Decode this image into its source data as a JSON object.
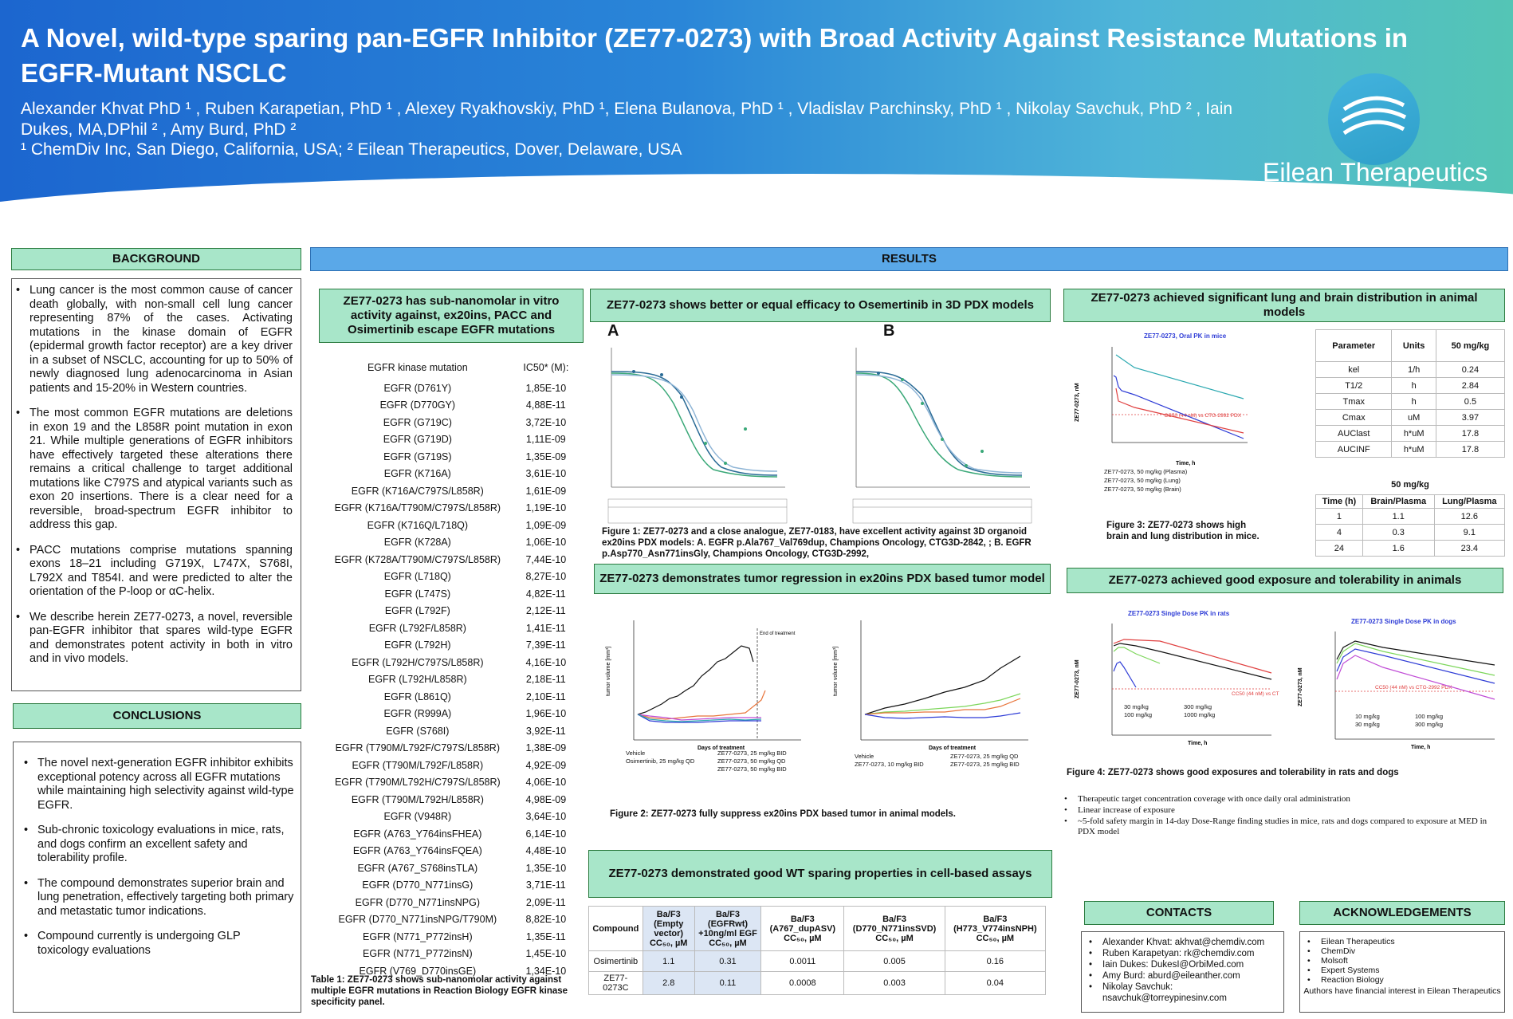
{
  "header": {
    "title": "A Novel, wild-type sparing pan-EGFR Inhibitor (ZE77-0273) with Broad Activity Against Resistance Mutations in EGFR-Mutant NSCLC",
    "authors": "Alexander Khvat PhD ¹ , Ruben Karapetian, PhD ¹ , Alexey Ryakhovskiy, PhD ¹, Elena Bulanova, PhD ¹ , Vladislav Parchinsky, PhD ¹ , Nikolay Savchuk, PhD ² , Iain Dukes, MA,DPhil ² , Amy Burd, PhD ²",
    "affiliations": "¹ ChemDiv Inc, San Diego, California, USA; ² Eilean Therapeutics, Dover, Delaware, USA",
    "logo_text": "Eilean Therapeutics"
  },
  "background": {
    "heading": "BACKGROUND",
    "bullets": [
      "Lung cancer is the most common cause of cancer death globally, with non-small cell lung cancer representing 87% of the cases. Activating mutations in the kinase domain of EGFR (epidermal growth factor receptor) are a key driver in a subset of NSCLC, accounting for up to 50% of newly diagnosed lung adenocarcinoma in Asian patients and 15-20% in Western countries.",
      "The most common EGFR mutations are deletions in exon 19 and the L858R point mutation in exon 21. While multiple generations of EGFR inhibitors have effectively targeted these alterations there remains a critical challenge to target additional mutations like C797S and atypical variants such as exon 20 insertions. There is a clear need for a reversible, broad-spectrum EGFR inhibitor to address this gap.",
      "PACC mutations comprise mutations spanning exons 18–21 including G719X, L747X, S768I, L792X and T854I. and were predicted to alter the orientation of the P-loop or αC-helix.",
      "We describe herein ZE77-0273, a novel, reversible pan-EGFR inhibitor that spares wild-type EGFR and demonstrates potent activity in both in vitro and in vivo models."
    ]
  },
  "conclusions": {
    "heading": "CONCLUSIONS",
    "bullets": [
      "The novel next-generation EGFR inhibitor exhibits exceptional potency across all EGFR mutations while maintaining high selectivity against wild-type EGFR.",
      "Sub-chronic toxicology evaluations in mice, rats, and dogs confirm an excellent safety and tolerability profile.",
      "The compound demonstrates superior brain and lung penetration, effectively targeting both primary and metastatic tumor indications.",
      "Compound currently is undergoing GLP toxicology evaluations"
    ]
  },
  "results": {
    "heading": "RESULTS",
    "ic50": {
      "heading": "ZE77-0273 has sub-nanomolar in vitro activity against, ex20ins, PACC and Osimertinib escape EGFR mutations",
      "col1": "EGFR kinase mutation",
      "col2": "IC50* (M):",
      "rows": [
        [
          "EGFR (D761Y)",
          "1,85E-10"
        ],
        [
          "EGFR (D770GY)",
          "4,88E-11"
        ],
        [
          "EGFR (G719C)",
          "3,72E-10"
        ],
        [
          "EGFR (G719D)",
          "1,11E-09"
        ],
        [
          "EGFR (G719S)",
          "1,35E-09"
        ],
        [
          "EGFR (K716A)",
          "3,61E-10"
        ],
        [
          "EGFR (K716A/C797S/L858R)",
          "1,61E-09"
        ],
        [
          "EGFR (K716A/T790M/C797S/L858R)",
          "1,19E-10"
        ],
        [
          "EGFR (K716Q/L718Q)",
          "1,09E-09"
        ],
        [
          "EGFR (K728A)",
          "1,06E-10"
        ],
        [
          "EGFR (K728A/T790M/C797S/L858R)",
          "7,44E-10"
        ],
        [
          "EGFR (L718Q)",
          "8,27E-10"
        ],
        [
          "EGFR (L747S)",
          "4,82E-11"
        ],
        [
          "EGFR (L792F)",
          "2,12E-11"
        ],
        [
          "EGFR (L792F/L858R)",
          "1,41E-11"
        ],
        [
          "EGFR (L792H)",
          "7,39E-11"
        ],
        [
          "EGFR (L792H/C797S/L858R)",
          "4,16E-10"
        ],
        [
          "EGFR (L792H/L858R)",
          "2,18E-11"
        ],
        [
          "EGFR (L861Q)",
          "2,10E-11"
        ],
        [
          "EGFR (R999A)",
          "1,96E-10"
        ],
        [
          "EGFR (S768I)",
          "3,92E-11"
        ],
        [
          "EGFR (T790M/L792F/C797S/L858R)",
          "1,38E-09"
        ],
        [
          "EGFR (T790M/L792F/L858R)",
          "4,92E-09"
        ],
        [
          "EGFR (T790M/L792H/C797S/L858R)",
          "4,06E-10"
        ],
        [
          "EGFR (T790M/L792H/L858R)",
          "4,98E-09"
        ],
        [
          "EGFR (V948R)",
          "3,64E-10"
        ],
        [
          "EGFR (A763_Y764insFHEA)",
          "6,14E-10"
        ],
        [
          "EGFR (A763_Y764insFQEA)",
          "4,48E-10"
        ],
        [
          "EGFR (A767_S768insTLA)",
          "1,35E-10"
        ],
        [
          "EGFR (D770_N771insG)",
          "3,71E-11"
        ],
        [
          "EGFR (D770_N771insNPG)",
          "2,09E-11"
        ],
        [
          "EGFR (D770_N771insNPG/T790M)",
          "8,82E-10"
        ],
        [
          "EGFR (N771_P772insH)",
          "1,35E-11"
        ],
        [
          "EGFR (N771_P772insN)",
          "1,45E-10"
        ],
        [
          "EGFR (V769_D770insGE)",
          "1,34E-10"
        ]
      ],
      "caption": "Table 1: ZE77-0273 shows sub-nanomolar activity against multiple EGFR mutations in Reaction Biology EGFR kinase specificity panel."
    },
    "pdx3d": {
      "heading": "ZE77-0273 shows better or equal efficacy to Osemertinib in 3D PDX models",
      "label_a": "A",
      "label_b": "B",
      "caption": "Figure 1: ZE77-0273 and a close analogue, ZE77-0183, have excellent activity against 3D organoid ex20ins PDX models: A. EGFR p.Ala767_Val769dup, Champions Oncology, CTG3D-2842, ; B. EGFR p.Asp770_Asn771insGly, Champions Oncology, CTG3D-2992,"
    },
    "regression": {
      "heading": "ZE77-0273 demonstrates tumor regression in ex20ins PDX based tumor model",
      "caption": "Figure 2: ZE77-0273 fully suppress ex20ins PDX based tumor in animal models.",
      "xlabel": "Days of treatment",
      "ylabel": "tumor volume [mm³]",
      "end_label": "End of treatment",
      "legend_left": [
        "Vehicle",
        "ZE77-0273, 25 mg/kg BID",
        "Osimertinib, 25 mg/kg QD",
        "ZE77-0273, 50 mg/kg QD",
        "ZE77-0273, 50 mg/kg BID"
      ],
      "legend_right": [
        "Vehicle",
        "ZE77-0273, 25 mg/kg QD",
        "ZE77-0273, 10 mg/kg BID",
        "ZE77-0273, 25 mg/kg BID"
      ]
    },
    "wt": {
      "heading": "ZE77-0273 demonstrated good WT sparing properties in cell-based assays",
      "headers": [
        "Compound",
        "Ba/F3 (Empty vector) CC₅₀, µM",
        "Ba/F3 (EGFRwt) +10ng/ml EGF CC₅₀, µM",
        "Ba/F3 (A767_dupASV) CC₅₀, µM",
        "Ba/F3 (D770_N771insSVD) CC₅₀, µM",
        "Ba/F3 (H773_V774insNPH) CC₅₀, µM"
      ],
      "rows": [
        [
          "Osimertinib",
          "1.1",
          "0.31",
          "0.0011",
          "0.005",
          "0.16"
        ],
        [
          "ZE77-0273C",
          "2.8",
          "0.11",
          "0.0008",
          "0.003",
          "0.04"
        ]
      ]
    },
    "distribution": {
      "heading": "ZE77-0273 achieved significant lung and brain distribution in animal models",
      "plot_title": "ZE77-0273, Oral PK in mice",
      "ylabel": "ZE77-0273, nM",
      "xlabel": "Time, h",
      "cc50_label": "CC50 (44 nM) vs CTG-2992 PDX",
      "legend": [
        "ZE77-0273, 50 mg/kg (Plasma)",
        "ZE77-0273, 50 mg/kg (Lung)",
        "ZE77-0273, 50 mg/kg (Brain)"
      ],
      "pk_headers": [
        "Parameter",
        "Units",
        "50 mg/kg"
      ],
      "pk_rows": [
        [
          "kel",
          "1/h",
          "0.24"
        ],
        [
          "T1/2",
          "h",
          "2.84"
        ],
        [
          "Tmax",
          "h",
          "0.5"
        ],
        [
          "Cmax",
          "uM",
          "3.97"
        ],
        [
          "AUClast",
          "h*uM",
          "17.8"
        ],
        [
          "AUCINF",
          "h*uM",
          "17.8"
        ]
      ],
      "ratio_top": "50 mg/kg",
      "ratio_headers": [
        "Time (h)",
        "Brain/Plasma",
        "Lung/Plasma"
      ],
      "ratio_rows": [
        [
          "1",
          "1.1",
          "12.6"
        ],
        [
          "4",
          "0.3",
          "9.1"
        ],
        [
          "24",
          "1.6",
          "23.4"
        ]
      ],
      "caption": "Figure 3: ZE77-0273 shows high brain and lung distribution in mice."
    },
    "exposure": {
      "heading": "ZE77-0273 achieved good exposure and tolerability in animals",
      "rat_title": "ZE77-0273 Single Dose PK in rats",
      "dog_title": "ZE77-0273 Single Dose PK in dogs",
      "ylabel": "ZE77-0273, nM",
      "xlabel": "Time, h",
      "cc50_label": "CC50 (44 nM) vs CTG-2992 PDX",
      "rat_legend": [
        "30 mg/kg",
        "300 mg/kg",
        "100 mg/kg",
        "1000 mg/kg"
      ],
      "dog_legend": [
        "10 mg/kg",
        "100 mg/kg",
        "30 mg/kg",
        "300 mg/kg"
      ],
      "caption": "Figure 4: ZE77-0273 shows good exposures and tolerability in rats and dogs",
      "bullets": [
        "Therapeutic target concentration coverage with once daily oral administration",
        "Linear increase of exposure",
        "~5-fold safety margin in 14-day Dose-Range finding studies in mice, rats and dogs compared to exposure at MED in PDX model"
      ]
    }
  },
  "contacts": {
    "heading": "CONTACTS",
    "items": [
      "Alexander Khvat: akhvat@chemdiv.com",
      "Ruben Karapetyan: rk@chemdiv.com",
      "Iain Dukes: DukesI@OrbiMed.com",
      "Amy Burd: aburd@eileanther.com",
      "Nikolay Savchuk: nsavchuk@torreypinesinv.com"
    ]
  },
  "acknowledgements": {
    "heading": "ACKNOWLEDGEMENTS",
    "items": [
      "Eilean Therapeutics",
      "ChemDiv",
      "Molsoft",
      "Expert Systems",
      "Reaction Biology"
    ],
    "note": "Authors have financial interest in Eilean Therapeutics"
  },
  "colors": {
    "accent": "#a8e6c9",
    "results": "#5aa8e8",
    "header_blue": "#1c66cf"
  }
}
